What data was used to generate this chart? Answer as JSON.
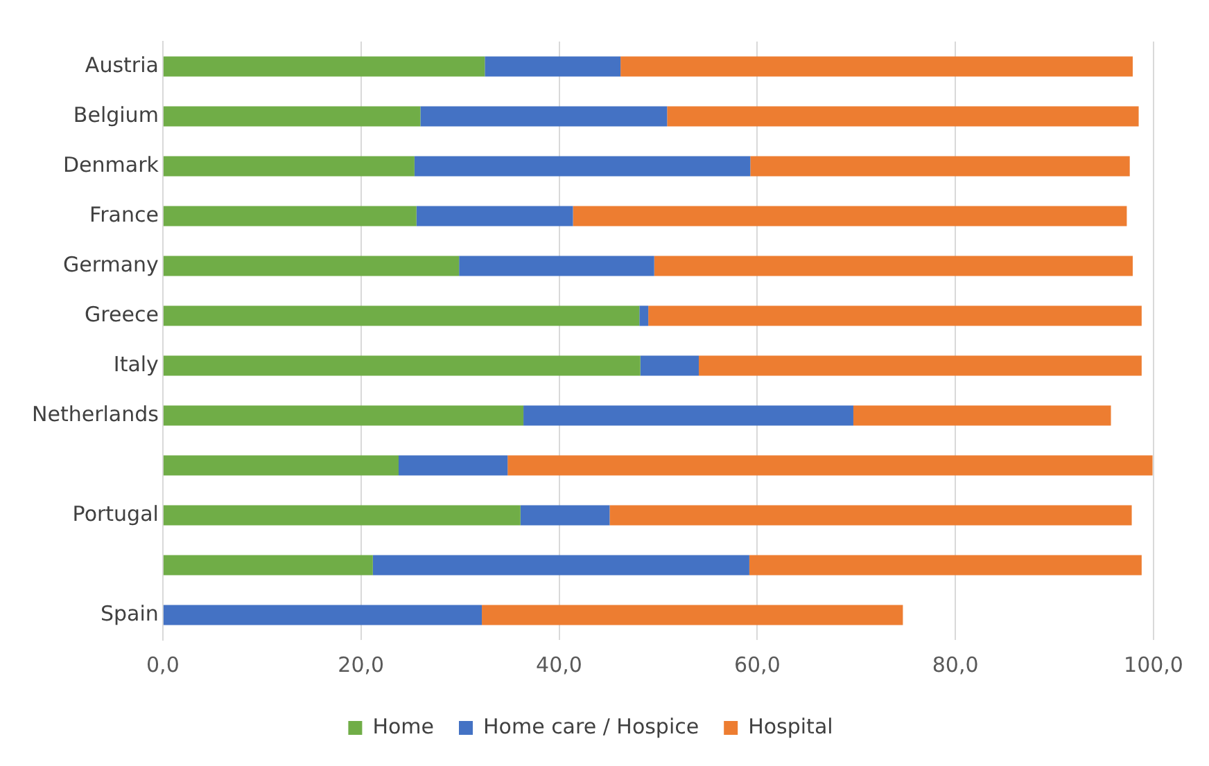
{
  "chart_data": {
    "type": "bar",
    "orientation": "horizontal",
    "stacked": true,
    "categories": [
      "Austria",
      "Belgium",
      "Denmark",
      "France",
      "Germany",
      "Greece",
      "Italy",
      "Netherlands",
      null,
      "Portugal",
      null,
      "Spain"
    ],
    "series": [
      {
        "name": "Home",
        "color": "#70ad47",
        "values": [
          32.5,
          26.0,
          25.4,
          25.6,
          29.9,
          48.1,
          48.2,
          36.4,
          23.8,
          36.1,
          21.2,
          0
        ]
      },
      {
        "name": "Home care / Hospice",
        "color": "#4472c4",
        "values": [
          13.7,
          24.9,
          33.9,
          15.8,
          19.7,
          0.9,
          5.9,
          33.3,
          11.0,
          9.0,
          38.0,
          32.2
        ]
      },
      {
        "name": "Hospital",
        "color": "#ed7d31",
        "values": [
          51.7,
          47.6,
          38.3,
          55.9,
          48.3,
          49.8,
          44.7,
          26.0,
          65.1,
          52.7,
          39.6,
          42.5
        ]
      }
    ],
    "xlim": [
      0,
      100
    ],
    "xticks": [
      {
        "value": 0,
        "label": "0,0"
      },
      {
        "value": 20,
        "label": "20,0"
      },
      {
        "value": 40,
        "label": "40,0"
      },
      {
        "value": 60,
        "label": "60,0"
      },
      {
        "value": 80,
        "label": "80,0"
      },
      {
        "value": 100,
        "label": "100,0"
      }
    ],
    "grid": "x",
    "legend": "bottom"
  }
}
